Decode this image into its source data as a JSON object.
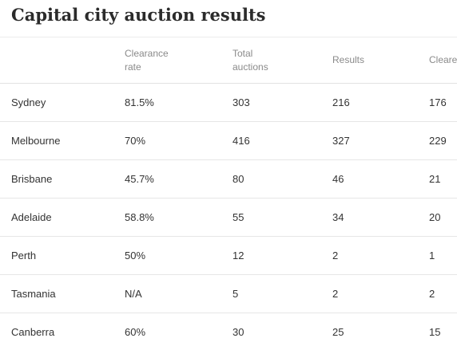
{
  "title": "Capital city auction results",
  "columns": [
    "",
    "Clearance rate",
    "Total auctions",
    "Results",
    "Cleare"
  ],
  "rows": [
    {
      "city": "Sydney",
      "clearance_rate": "81.5%",
      "total_auctions": "303",
      "results": "216",
      "cleared": "176"
    },
    {
      "city": "Melbourne",
      "clearance_rate": "70%",
      "total_auctions": "416",
      "results": "327",
      "cleared": "229"
    },
    {
      "city": "Brisbane",
      "clearance_rate": "45.7%",
      "total_auctions": "80",
      "results": "46",
      "cleared": "21"
    },
    {
      "city": "Adelaide",
      "clearance_rate": "58.8%",
      "total_auctions": "55",
      "results": "34",
      "cleared": "20"
    },
    {
      "city": "Perth",
      "clearance_rate": "50%",
      "total_auctions": "12",
      "results": "2",
      "cleared": "1"
    },
    {
      "city": "Tasmania",
      "clearance_rate": "N/A",
      "total_auctions": "5",
      "results": "2",
      "cleared": "2"
    },
    {
      "city": "Canberra",
      "clearance_rate": "60%",
      "total_auctions": "30",
      "results": "25",
      "cleared": "15"
    }
  ]
}
